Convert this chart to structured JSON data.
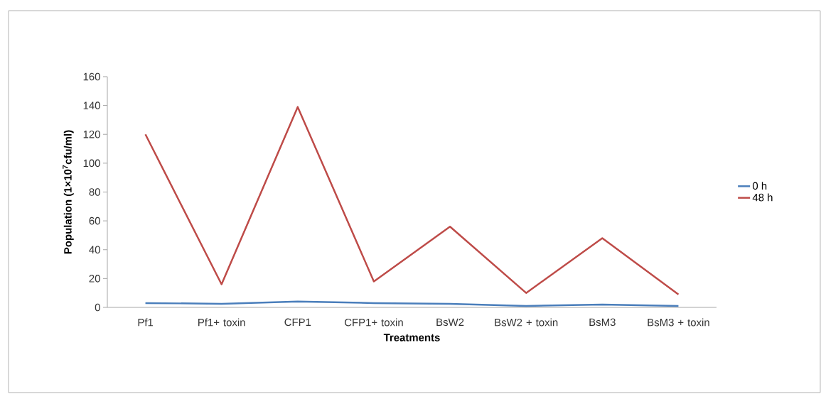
{
  "chart_data": {
    "type": "line",
    "categories": [
      "Pf1",
      "Pf1+ toxin",
      "CFP1",
      "CFP1+ toxin",
      "BsW2",
      "BsW2 + toxin",
      "BsM3",
      "BsM3 + toxin"
    ],
    "series": [
      {
        "name": "0 h",
        "color": "#4a7ebb",
        "values": [
          3,
          2.5,
          4,
          3,
          2.5,
          1,
          2,
          1
        ]
      },
      {
        "name": "48 h",
        "color": "#be4b48",
        "values": [
          120,
          16,
          139,
          18,
          56,
          10,
          48,
          9
        ]
      }
    ],
    "xlabel": "Treatments",
    "ylabel": "Population (1×10$^{7}$cfu/ml)",
    "ylim": [
      0,
      160
    ],
    "yticks": [
      0,
      20,
      40,
      60,
      80,
      100,
      120,
      140,
      160
    ],
    "legend": "right",
    "marker": "none",
    "line_style": "solid",
    "grid": false
  }
}
